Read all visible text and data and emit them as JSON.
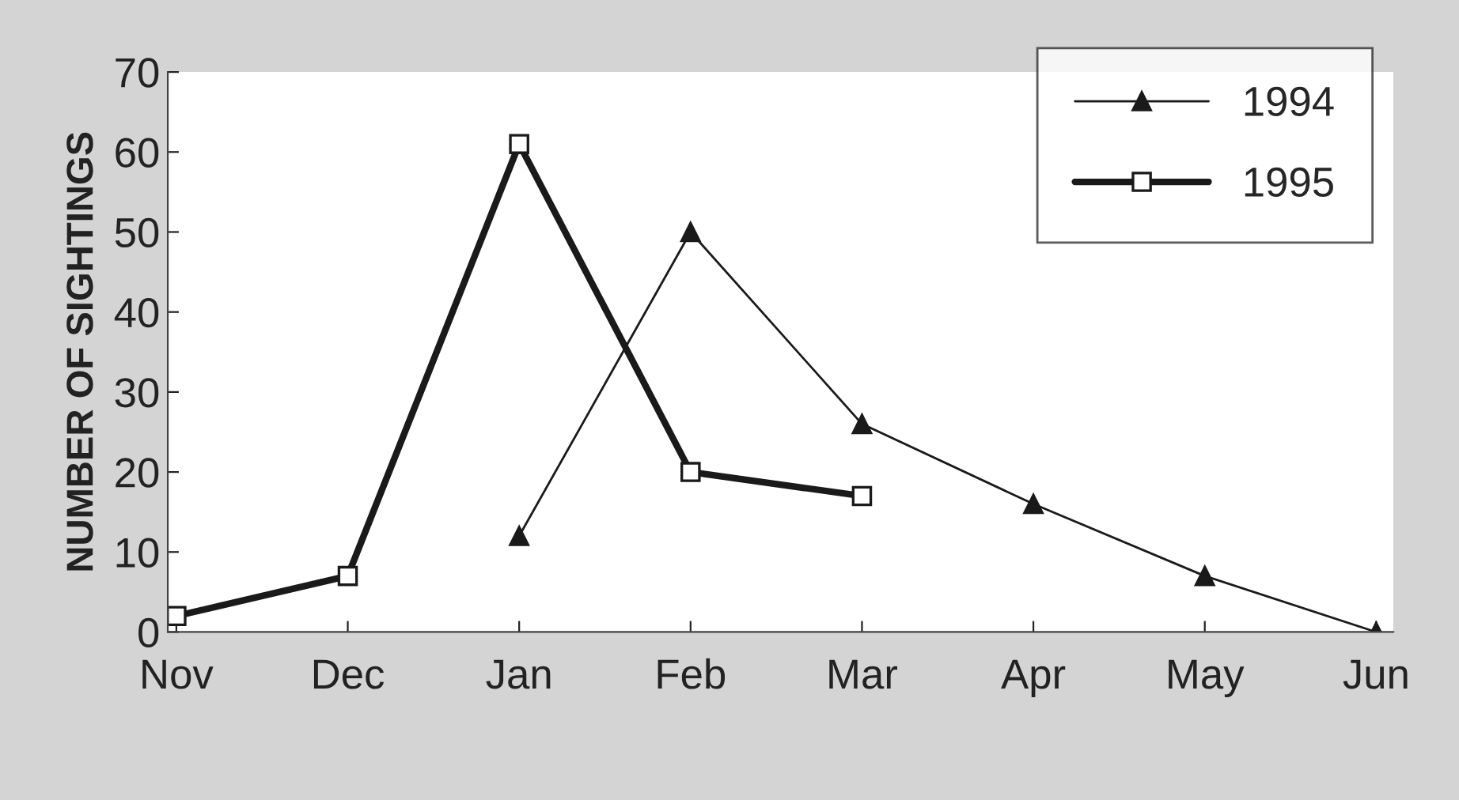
{
  "chart_data": {
    "type": "line",
    "ylabel": "NUMBER OF SIGHTINGS",
    "categories": [
      "Nov",
      "Dec",
      "Jan",
      "Feb",
      "Mar",
      "Apr",
      "May",
      "Jun"
    ],
    "series": [
      {
        "name": "1994",
        "color": "#1a1a1a",
        "marker": "triangle",
        "values": [
          null,
          null,
          12,
          50,
          26,
          16,
          7,
          0
        ]
      },
      {
        "name": "1995",
        "color": "#1a1a1a",
        "marker": "square",
        "values": [
          2,
          7,
          61,
          20,
          17,
          null,
          null,
          null
        ]
      }
    ],
    "ylim": [
      0,
      70
    ],
    "yticks": [
      0,
      10,
      20,
      30,
      40,
      50,
      60,
      70
    ],
    "grid": false,
    "legend": "top right",
    "line_style": "solid"
  }
}
